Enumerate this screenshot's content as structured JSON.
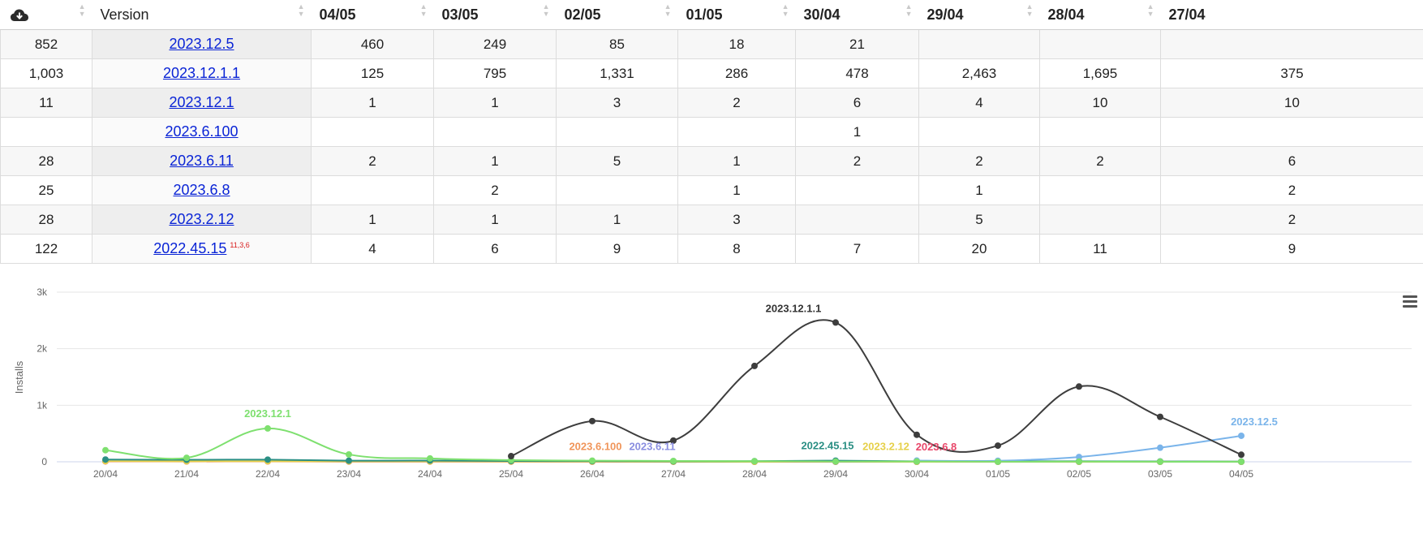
{
  "table": {
    "download_icon": "cloud-download-icon",
    "headers": [
      "Version",
      "04/05",
      "03/05",
      "02/05",
      "01/05",
      "30/04",
      "29/04",
      "28/04",
      "27/04"
    ],
    "rows": [
      {
        "total": "852",
        "version": "2023.12.5",
        "note": "",
        "cells": [
          "460",
          "249",
          "85",
          "18",
          "21",
          "",
          "",
          ""
        ]
      },
      {
        "total": "1,003",
        "version": "2023.12.1.1",
        "note": "",
        "cells": [
          "125",
          "795",
          "1,331",
          "286",
          "478",
          "2,463",
          "1,695",
          "375"
        ]
      },
      {
        "total": "11",
        "version": "2023.12.1",
        "note": "",
        "cells": [
          "1",
          "1",
          "3",
          "2",
          "6",
          "4",
          "10",
          "10"
        ]
      },
      {
        "total": "",
        "version": "2023.6.100",
        "note": "",
        "cells": [
          "",
          "",
          "",
          "",
          "1",
          "",
          "",
          ""
        ]
      },
      {
        "total": "28",
        "version": "2023.6.11",
        "note": "",
        "cells": [
          "2",
          "1",
          "5",
          "1",
          "2",
          "2",
          "2",
          "6"
        ]
      },
      {
        "total": "25",
        "version": "2023.6.8",
        "note": "",
        "cells": [
          "",
          "2",
          "",
          "1",
          "",
          "1",
          "",
          "2"
        ]
      },
      {
        "total": "28",
        "version": "2023.2.12",
        "note": "",
        "cells": [
          "1",
          "1",
          "1",
          "3",
          "",
          "5",
          "",
          "2"
        ]
      },
      {
        "total": "122",
        "version": "2022.45.15",
        "note": "11,3,6",
        "cells": [
          "4",
          "6",
          "9",
          "8",
          "7",
          "20",
          "11",
          "9"
        ]
      }
    ]
  },
  "chart_data": {
    "type": "line",
    "ylabel": "Installs",
    "xlabel": "",
    "ylim": [
      0,
      3000
    ],
    "yticks": [
      "0",
      "1k",
      "2k",
      "3k"
    ],
    "x": [
      "20/04",
      "21/04",
      "22/04",
      "23/04",
      "24/04",
      "25/04",
      "26/04",
      "27/04",
      "28/04",
      "29/04",
      "30/04",
      "01/05",
      "02/05",
      "03/05",
      "04/05"
    ],
    "series": [
      {
        "name": "2023.12.1",
        "color": "#7ee06f",
        "values": [
          205,
          70,
          590,
          130,
          60,
          30,
          20,
          15,
          10,
          4,
          6,
          2,
          3,
          1,
          1
        ],
        "label_index": 2
      },
      {
        "name": "2023.12.1.1",
        "color": "#3d3d3d",
        "values": [
          null,
          null,
          null,
          null,
          null,
          100,
          720,
          375,
          1695,
          2463,
          478,
          286,
          1331,
          795,
          125
        ],
        "label_index": 9
      },
      {
        "name": "2023.12.5",
        "color": "#7ab4ea",
        "values": [
          null,
          null,
          null,
          null,
          null,
          null,
          null,
          null,
          null,
          null,
          21,
          18,
          85,
          249,
          460
        ],
        "label_index": 14
      },
      {
        "name": "2023.6.100",
        "color": "#f0955a",
        "values": [
          null,
          null,
          null,
          null,
          null,
          null,
          5,
          3,
          2,
          2,
          1,
          0,
          0,
          0,
          0
        ],
        "label_index": 6
      },
      {
        "name": "2023.6.11",
        "color": "#8a8ee0",
        "values": [
          12,
          8,
          10,
          6,
          5,
          4,
          3,
          6,
          2,
          2,
          2,
          1,
          5,
          1,
          2
        ],
        "label_index": 7
      },
      {
        "name": "2023.6.8",
        "color": "#e8476a",
        "values": [
          8,
          6,
          7,
          4,
          4,
          3,
          2,
          2,
          0,
          1,
          0,
          1,
          0,
          2,
          0
        ],
        "label_index": 10
      },
      {
        "name": "2023.2.12",
        "color": "#e6d04a",
        "values": [
          10,
          8,
          9,
          6,
          5,
          4,
          3,
          2,
          0,
          5,
          0,
          3,
          1,
          1,
          1
        ],
        "label_index": 9
      },
      {
        "name": "2022.45.15",
        "color": "#2b8f84",
        "values": [
          40,
          35,
          38,
          20,
          22,
          15,
          12,
          9,
          11,
          20,
          7,
          8,
          9,
          6,
          4
        ],
        "label_index": 9
      }
    ],
    "label_positions_note": "labels drawn near the series",
    "grid": true,
    "menu_icon": "hamburger-menu-icon"
  }
}
